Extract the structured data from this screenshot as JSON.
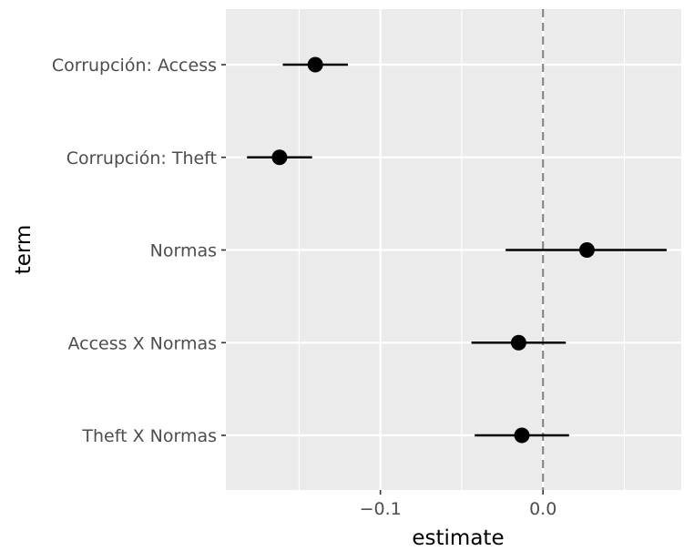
{
  "chart_data": {
    "type": "scatter",
    "title": "",
    "xlabel": "estimate",
    "ylabel": "term",
    "xlim": [
      -0.195,
      0.085
    ],
    "x_ticks": [
      -0.1,
      0.0
    ],
    "x_tick_labels": [
      "−0.1",
      "0.0"
    ],
    "reference_line": {
      "x": 0.0,
      "style": "dashed",
      "color": "#7f7f7f"
    },
    "grid": true,
    "legend": "none",
    "point_color": "#000000",
    "panel_background": "#ebebeb",
    "terms": [
      {
        "label": "Corrupción: Access",
        "estimate": -0.14,
        "conf_low": -0.16,
        "conf_high": -0.12
      },
      {
        "label": "Corrupción: Theft",
        "estimate": -0.162,
        "conf_low": -0.182,
        "conf_high": -0.142
      },
      {
        "label": "Normas",
        "estimate": 0.027,
        "conf_low": -0.023,
        "conf_high": 0.076
      },
      {
        "label": "Access X Normas",
        "estimate": -0.015,
        "conf_low": -0.044,
        "conf_high": 0.014
      },
      {
        "label": "Theft X Normas",
        "estimate": -0.013,
        "conf_low": -0.042,
        "conf_high": 0.016
      }
    ]
  }
}
